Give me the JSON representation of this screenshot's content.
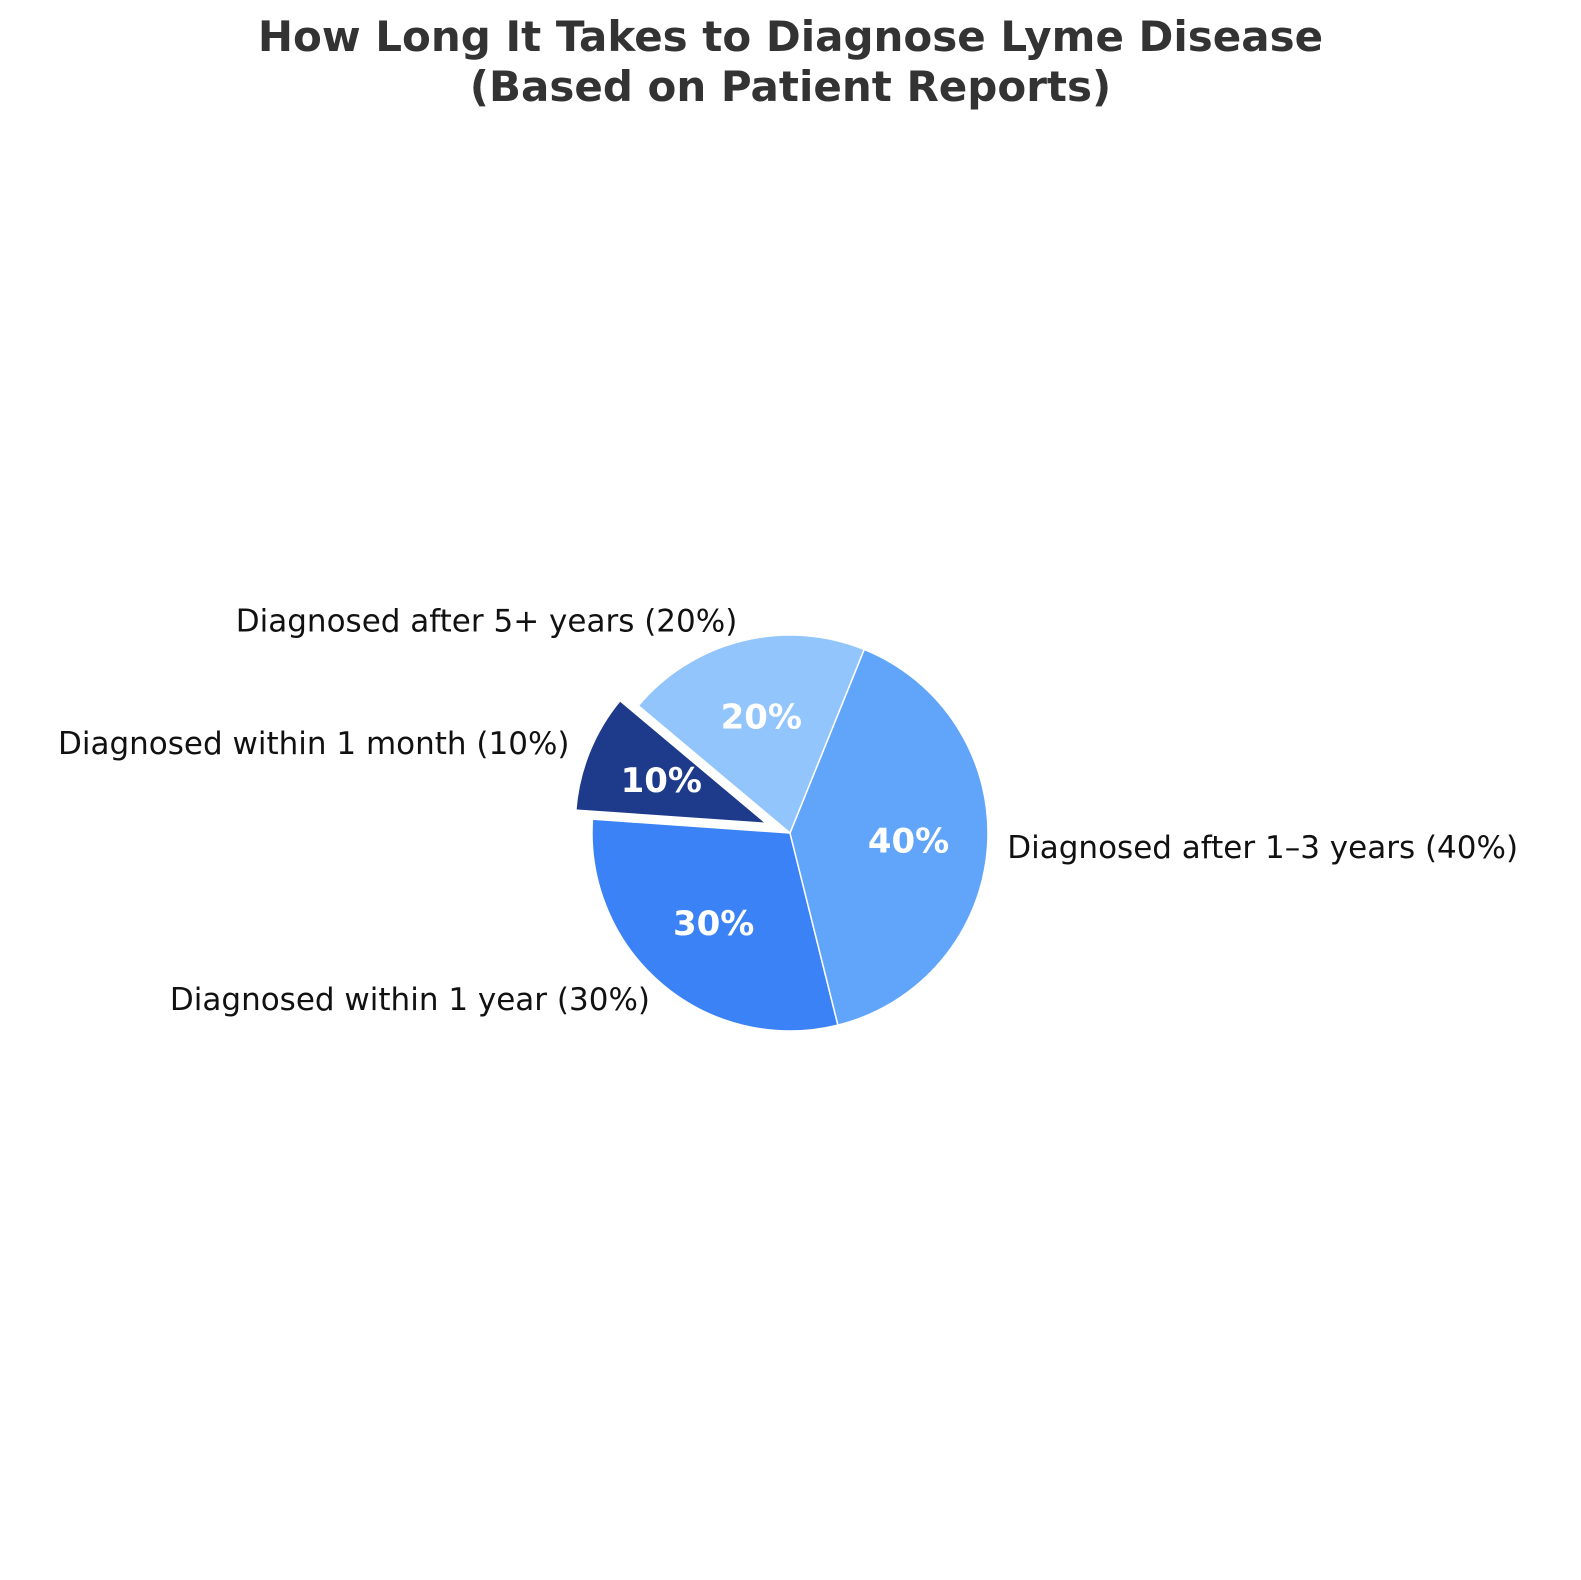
{
  "chart_data": {
    "type": "pie",
    "title": "How Long It Takes to Diagnose Lyme Disease\n(Based on Patient Reports)",
    "start_angle_deg": 140,
    "direction": "counterclockwise",
    "slices": [
      {
        "label": "Diagnosed within 1 month (10%)",
        "value": 10,
        "pct_label": "10%",
        "color": "#1e3a8a",
        "exploded": true
      },
      {
        "label": "Diagnosed within 1 year (30%)",
        "value": 30,
        "pct_label": "30%",
        "color": "#3b82f6",
        "exploded": false
      },
      {
        "label": "Diagnosed after 1–3 years (40%)",
        "value": 40,
        "pct_label": "40%",
        "color": "#60a5fa",
        "exploded": false
      },
      {
        "label": "Diagnosed after 5+ years (20%)",
        "value": 20,
        "pct_label": "20%",
        "color": "#93c5fd",
        "exploded": false
      }
    ]
  }
}
